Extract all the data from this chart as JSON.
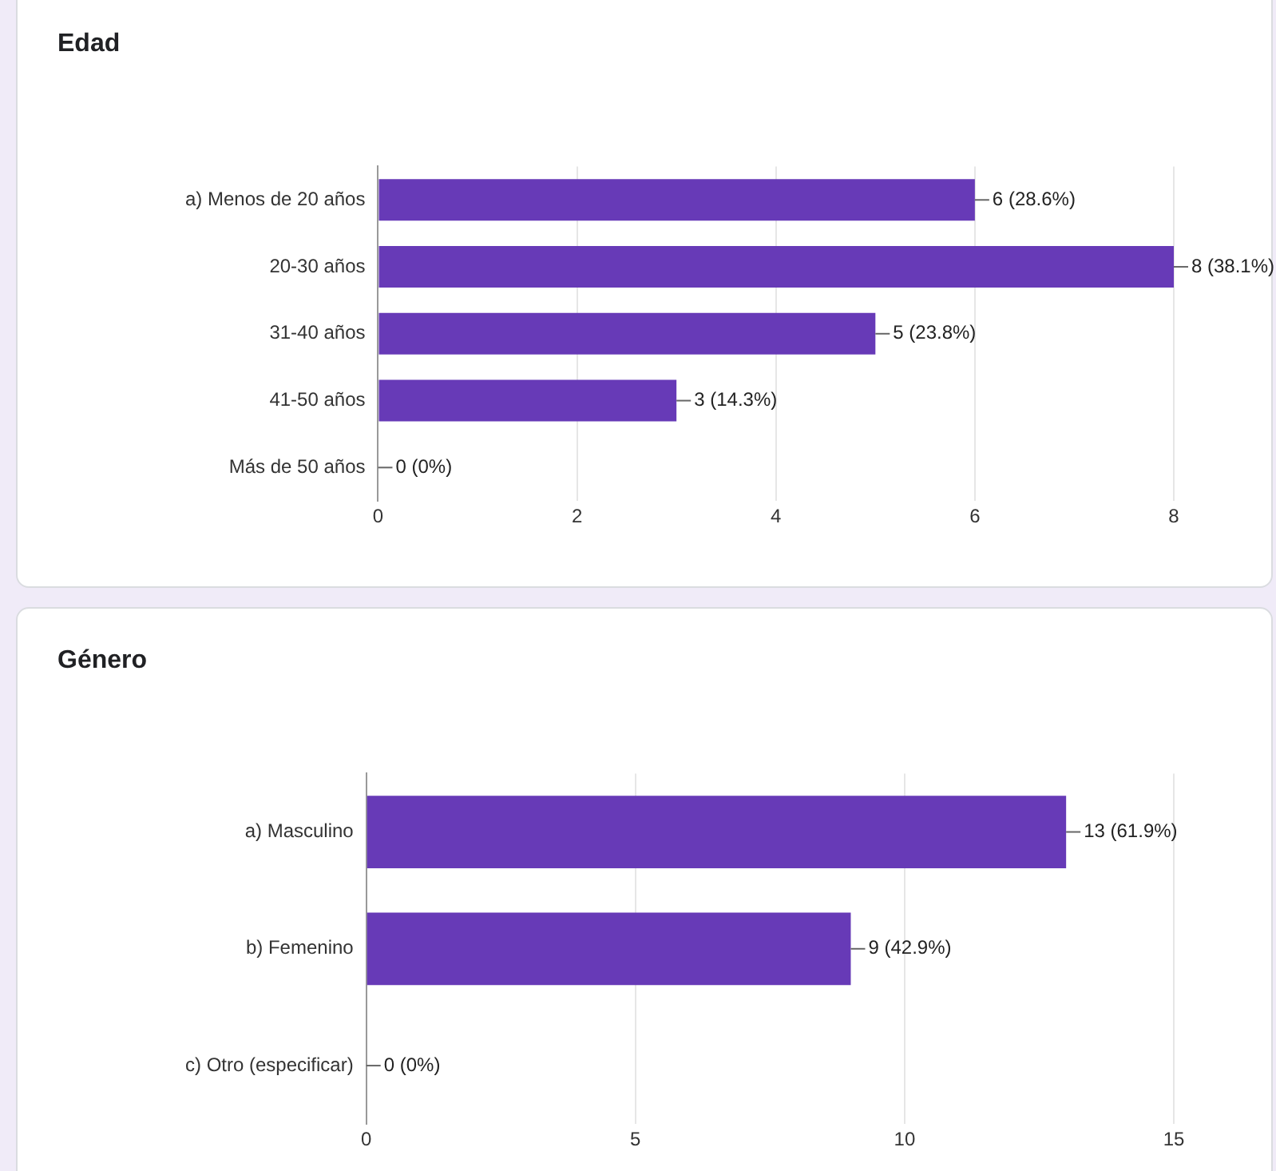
{
  "chart_data": [
    {
      "type": "bar",
      "orientation": "horizontal",
      "title": "Edad",
      "categories": [
        "a) Menos de 20 años",
        "20-30 años",
        "31-40 años",
        "41-50 años",
        "Más de 50 años"
      ],
      "values": [
        6,
        8,
        5,
        3,
        0
      ],
      "color": "#673ab7",
      "xlim": [
        0,
        8
      ],
      "xticks": [
        0,
        2,
        4,
        6,
        8
      ],
      "grid": "x",
      "legend": false,
      "value_labels": [
        "6 (28.6%)",
        "8 (38.1%)",
        "5 (23.8%)",
        "3 (14.3%)",
        "0 (0%)"
      ]
    },
    {
      "type": "bar",
      "orientation": "horizontal",
      "title": "Género",
      "categories": [
        "a) Masculino",
        "b) Femenino",
        "c) Otro (especificar)"
      ],
      "values": [
        13,
        9,
        0
      ],
      "color": "#673ab7",
      "xlim": [
        0,
        15
      ],
      "xticks": [
        0,
        5,
        10,
        15
      ],
      "grid": "x",
      "legend": false,
      "value_labels": [
        "13 (61.9%)",
        "9 (42.9%)",
        "0 (0%)"
      ]
    }
  ]
}
